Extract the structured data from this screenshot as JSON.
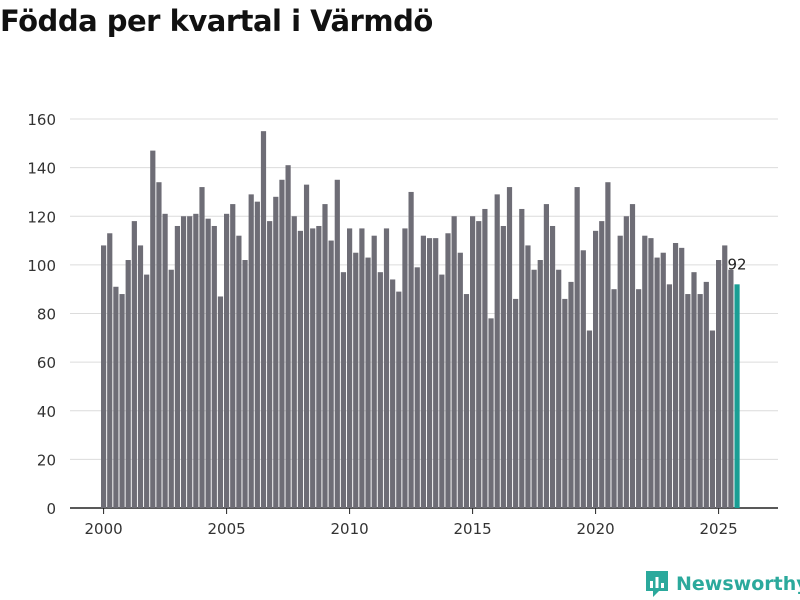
{
  "title": "Födda per kvartal i Värmdö",
  "brand": {
    "name": "Newsworthy"
  },
  "colors": {
    "bar": "#6e6d76",
    "highlight": "#1a9e94",
    "grid": "#dcdcdc",
    "axis": "#222222",
    "brand": "#2ba99c"
  },
  "chart_data": {
    "type": "bar",
    "title": "Födda per kvartal i Värmdö",
    "xlabel": "",
    "ylabel": "",
    "ylim": [
      0,
      160
    ],
    "yticks": [
      0,
      20,
      40,
      60,
      80,
      100,
      120,
      140,
      160
    ],
    "xticks": [
      2000,
      2005,
      2010,
      2015,
      2020,
      2025
    ],
    "x_start": 2000,
    "periods_per_year": 4,
    "highlight_last": true,
    "last_label": "92",
    "values": [
      108,
      113,
      91,
      88,
      102,
      118,
      108,
      96,
      147,
      134,
      121,
      98,
      116,
      120,
      120,
      121,
      132,
      119,
      116,
      87,
      121,
      125,
      112,
      102,
      129,
      126,
      155,
      118,
      128,
      135,
      141,
      120,
      114,
      133,
      115,
      116,
      125,
      110,
      135,
      97,
      115,
      105,
      115,
      103,
      112,
      97,
      115,
      94,
      89,
      115,
      130,
      99,
      112,
      111,
      111,
      96,
      113,
      120,
      105,
      88,
      120,
      118,
      123,
      78,
      129,
      116,
      132,
      86,
      123,
      108,
      98,
      102,
      125,
      116,
      98,
      86,
      93,
      132,
      106,
      73,
      114,
      118,
      134,
      90,
      112,
      120,
      125,
      90,
      112,
      111,
      103,
      105,
      92,
      109,
      107,
      88,
      97,
      88,
      93,
      73,
      102,
      108,
      98,
      92
    ]
  }
}
